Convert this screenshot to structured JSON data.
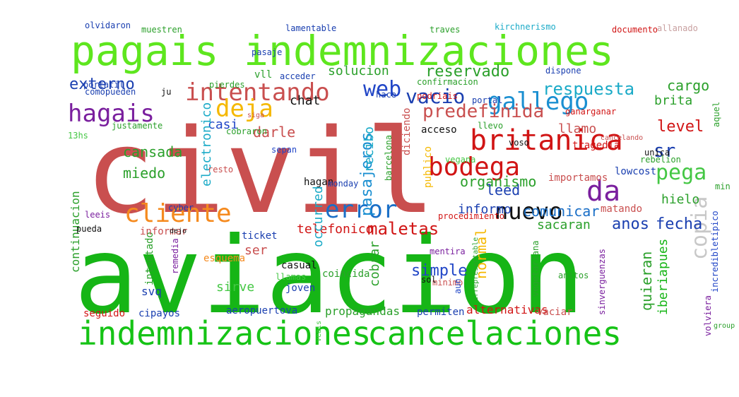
{
  "word_cloud": {
    "words": [
      {
        "text": "civil",
        "color": "#c94f4f"
      },
      {
        "text": "aviacion",
        "color": "#16b516"
      },
      {
        "text": "pagais",
        "color": "#5ee61e"
      },
      {
        "text": "indemnizaciones",
        "color": "#5ee61e"
      },
      {
        "text": "indemnizaciones",
        "color": "#16c316"
      },
      {
        "text": "cancelaciones",
        "color": "#16c316"
      },
      {
        "text": "britanica",
        "color": "#d11515"
      },
      {
        "text": "intentando",
        "color": "#c94f4f"
      },
      {
        "text": "gallego",
        "color": "#1a8fd1"
      },
      {
        "text": "vacio",
        "color": "#1a3fb0"
      },
      {
        "text": "deja",
        "color": "#f5b800"
      },
      {
        "text": "hagais",
        "color": "#7a1f9e"
      },
      {
        "text": "web",
        "color": "#2146c7"
      },
      {
        "text": "respuesta",
        "color": "#1aaac7"
      },
      {
        "text": "reservado",
        "color": "#2ba02b"
      },
      {
        "text": "bodega",
        "color": "#d11515"
      },
      {
        "text": "da",
        "color": "#7a1f9e"
      },
      {
        "text": "pega",
        "color": "#44c744"
      },
      {
        "text": "sr",
        "color": "#1a3fb0"
      },
      {
        "text": "cliente",
        "color": "#f58a1e"
      },
      {
        "text": "error",
        "color": "#1a6fc7"
      },
      {
        "text": "nuevo",
        "color": "#111111"
      },
      {
        "text": "copia",
        "color": "#c8c8c8"
      },
      {
        "text": "predefinida",
        "color": "#c94f4f"
      },
      {
        "text": "pasajeros",
        "color": "#1a8fd1"
      },
      {
        "text": "maletas",
        "color": "#d11515"
      },
      {
        "text": "organismo",
        "color": "#2ba02b"
      },
      {
        "text": "level",
        "color": "#d11515"
      },
      {
        "text": "simple",
        "color": "#2146c7"
      },
      {
        "text": "normal",
        "color": "#f5b800"
      },
      {
        "text": "anos",
        "color": "#1a3fb0"
      },
      {
        "text": "fecha",
        "color": "#1a3fb0"
      },
      {
        "text": "quieran",
        "color": "#2ba02b"
      },
      {
        "text": "iberiapues",
        "color": "#16b516"
      },
      {
        "text": "externo",
        "color": "#1a3fb0"
      },
      {
        "text": "solucion",
        "color": "#2ba02b"
      },
      {
        "text": "chat",
        "color": "#111111"
      },
      {
        "text": "cargo",
        "color": "#2ba02b"
      },
      {
        "text": "brita",
        "color": "#2ba02b"
      },
      {
        "text": "casi",
        "color": "#2146c7"
      },
      {
        "text": "darle",
        "color": "#c94f4f"
      },
      {
        "text": "cansada",
        "color": "#2ba02b"
      },
      {
        "text": "miedo",
        "color": "#2ba02b"
      },
      {
        "text": "leed",
        "color": "#1a3fb0"
      },
      {
        "text": "comunicar",
        "color": "#1a6fc7"
      },
      {
        "text": "hielo",
        "color": "#2ba02b"
      },
      {
        "text": "llamo",
        "color": "#c94f4f"
      },
      {
        "text": "telefonico",
        "color": "#d11515"
      },
      {
        "text": "sacaran",
        "color": "#2ba02b"
      },
      {
        "text": "informo",
        "color": "#1a3fb0"
      },
      {
        "text": "electronico",
        "color": "#1aaac7"
      },
      {
        "text": "occurred",
        "color": "#1aaac7"
      },
      {
        "text": "recibo",
        "color": "#1aaac7"
      },
      {
        "text": "ser",
        "color": "#c94f4f"
      },
      {
        "text": "sirve",
        "color": "#44c744"
      },
      {
        "text": "cobrar",
        "color": "#2ba02b"
      },
      {
        "text": "continuacion",
        "color": "#2ba02b"
      },
      {
        "text": "svq",
        "color": "#1a3fb0"
      },
      {
        "text": "alternativas",
        "color": "#d11515"
      },
      {
        "text": "propagandas",
        "color": "#2ba02b"
      },
      {
        "text": "aeropuertova",
        "color": "#1a3fb0"
      },
      {
        "text": "seguido",
        "color": "#d11515"
      },
      {
        "text": "cipayos",
        "color": "#1a3fb0"
      },
      {
        "text": "permiten",
        "color": "#1a3fb0"
      },
      {
        "text": "vaciar",
        "color": "#c94f4f"
      },
      {
        "text": "joven",
        "color": "#1a3fb0"
      },
      {
        "text": "casual",
        "color": "#111111"
      },
      {
        "text": "coincida",
        "color": "#2ba02b"
      },
      {
        "text": "esquema",
        "color": "#f58a1e"
      },
      {
        "text": "intentado",
        "color": "#2ba02b"
      },
      {
        "text": "ticket",
        "color": "#1a3fb0"
      },
      {
        "text": "informar",
        "color": "#c94f4f"
      },
      {
        "text": "pueda",
        "color": "#111111"
      },
      {
        "text": "leeis",
        "color": "#7a1f9e"
      },
      {
        "text": "cyber",
        "color": "#1a3fb0"
      },
      {
        "text": "resto",
        "color": "#c94f4f"
      },
      {
        "text": "sepan",
        "color": "#2146c7"
      },
      {
        "text": "hagan",
        "color": "#111111"
      },
      {
        "text": "monday",
        "color": "#1a3fb0"
      },
      {
        "text": "acceso",
        "color": "#111111"
      },
      {
        "text": "publico",
        "color": "#f5b800"
      },
      {
        "text": "vegana",
        "color": "#44c744"
      },
      {
        "text": "diciendo",
        "color": "#c94f4f"
      },
      {
        "text": "barcelona",
        "color": "#2ba02b"
      },
      {
        "text": "tragedia",
        "color": "#d11515"
      },
      {
        "text": "unica",
        "color": "#111111"
      },
      {
        "text": "rebelion",
        "color": "#2ba02b"
      },
      {
        "text": "importamos",
        "color": "#c94f4f"
      },
      {
        "text": "lowcost",
        "color": "#1a3fb0"
      },
      {
        "text": "matando",
        "color": "#c94f4f"
      },
      {
        "text": "procedimiento",
        "color": "#d11515"
      },
      {
        "text": "incredibletipico",
        "color": "#2146c7"
      },
      {
        "text": "volviera",
        "color": "#7a1f9e"
      },
      {
        "text": "sinverguenzas",
        "color": "#7a1f9e"
      },
      {
        "text": "vegetariana",
        "color": "#2ba02b"
      },
      {
        "text": "anitos",
        "color": "#2ba02b"
      },
      {
        "text": "minimo",
        "color": "#c94f4f"
      },
      {
        "text": "sol",
        "color": "#111111"
      },
      {
        "text": "mentira",
        "color": "#7a1f9e"
      },
      {
        "text": "olvidaron",
        "color": "#1a3fb0"
      },
      {
        "text": "muestren",
        "color": "#2ba02b"
      },
      {
        "text": "lamentable",
        "color": "#1a3fb0"
      },
      {
        "text": "traves",
        "color": "#2ba02b"
      },
      {
        "text": "kirchnerismo",
        "color": "#1aaac7"
      },
      {
        "text": "documento",
        "color": "#d11515"
      },
      {
        "text": "allanado",
        "color": "#c8a0a0"
      },
      {
        "text": "cancelando",
        "color": "#c94f4f"
      },
      {
        "text": "vll",
        "color": "#2ba02b"
      },
      {
        "text": "pasaje",
        "color": "#1a3fb0"
      },
      {
        "text": "pierdes",
        "color": "#2ba02b"
      },
      {
        "text": "portatil",
        "color": "#1a3fb0"
      },
      {
        "text": "acceder",
        "color": "#1a3fb0"
      },
      {
        "text": "dispone",
        "color": "#1a3fb0"
      },
      {
        "text": "hace",
        "color": "#1a3fb0"
      },
      {
        "text": "podriais",
        "color": "#d11515"
      },
      {
        "text": "portal",
        "color": "#1a3fb0"
      },
      {
        "text": "confirmacion",
        "color": "#2ba02b"
      },
      {
        "text": "ganarganar",
        "color": "#d11515"
      },
      {
        "text": "llevo",
        "color": "#2ba02b"
      },
      {
        "text": "voso",
        "color": "#111111"
      },
      {
        "text": "justamente",
        "color": "#2ba02b"
      },
      {
        "text": "cobraron",
        "color": "#2ba02b"
      },
      {
        "text": "comopueden",
        "color": "#1a3fb0"
      },
      {
        "text": "ju",
        "color": "#111111"
      },
      {
        "text": "13hs",
        "color": "#44c744"
      },
      {
        "text": "aquel",
        "color": "#2ba02b"
      },
      {
        "text": "remedia",
        "color": "#7a1f9e"
      },
      {
        "text": "llamas",
        "color": "#44c744"
      },
      {
        "text": "aun",
        "color": "#2146c7"
      },
      {
        "text": "min",
        "color": "#2ba02b"
      },
      {
        "text": "dejo",
        "color": "#111111"
      },
      {
        "text": "siga",
        "color": "#c94f4f"
      },
      {
        "text": "irrepresentable",
        "color": "#2ba02b"
      },
      {
        "text": "veais",
        "color": "#44c744"
      },
      {
        "text": "group",
        "color": "#2ba02b"
      }
    ]
  }
}
